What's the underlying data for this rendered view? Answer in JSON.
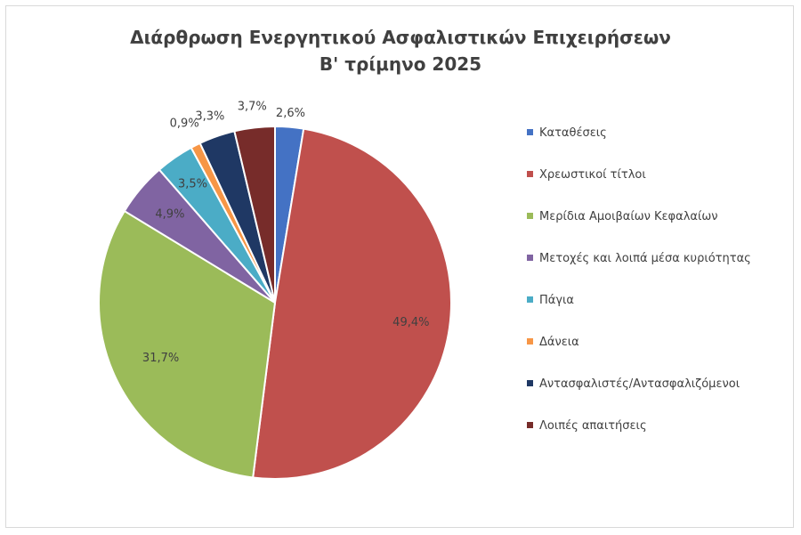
{
  "chart_data": {
    "type": "pie",
    "title": [
      "Διάρθρωση Ενεργητικού Ασφαλιστικών Επιχειρήσεων",
      "Β' τρίμηνο 2025"
    ],
    "legend_position": "right",
    "slices": [
      {
        "name": "Καταθέσεις",
        "value": 2.6,
        "label": "2,6%",
        "color": "#4472C4"
      },
      {
        "name": "Χρεωστικοί τίτλοι",
        "value": 49.4,
        "label": "49,4%",
        "color": "#C0504D"
      },
      {
        "name": "Μερίδια Αμοιβαίων Κεφαλαίων",
        "value": 31.7,
        "label": "31,7%",
        "color": "#9BBB59"
      },
      {
        "name": "Μετοχές και λοιπά μέσα κυριότητας",
        "value": 4.9,
        "label": "4,9%",
        "color": "#8064A2"
      },
      {
        "name": "Πάγια",
        "value": 3.5,
        "label": "3,5%",
        "color": "#4BACC6"
      },
      {
        "name": "Δάνεια",
        "value": 0.9,
        "label": "0,9%",
        "color": "#F79646"
      },
      {
        "name": "Αντασφαλιστές/Αντασφαλιζόμενοι",
        "value": 3.3,
        "label": "3,3%",
        "color": "#1F3864"
      },
      {
        "name": "Λοιπές απαιτήσεις",
        "value": 3.7,
        "label": "3,7%",
        "color": "#772C2A"
      }
    ]
  }
}
